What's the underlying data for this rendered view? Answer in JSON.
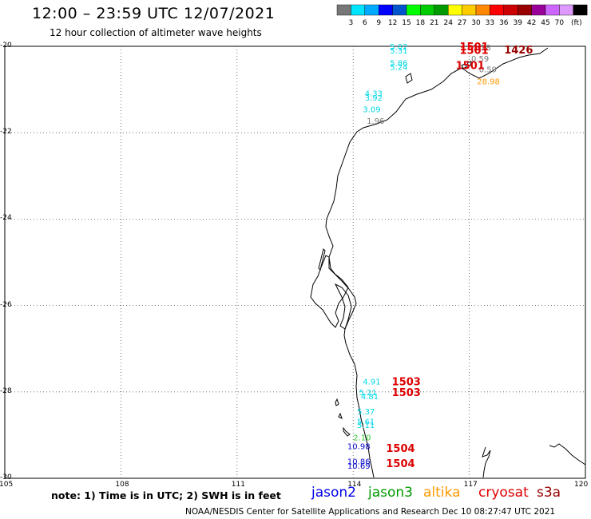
{
  "header": {
    "title": "12:00 – 23:59 UTC 12/07/2021",
    "subtitle": "12 hour collection of altimeter wave heights"
  },
  "scale": {
    "unit": "(ft)",
    "colors": [
      "#777777",
      "#00e5ff",
      "#00aaff",
      "#0000ff",
      "#0055cc",
      "#00ff00",
      "#00cc00",
      "#009900",
      "#ffff00",
      "#ffcc00",
      "#ff8800",
      "#ff0000",
      "#cc0000",
      "#990000",
      "#990099",
      "#cc66ff",
      "#dd99ff",
      "#000000"
    ],
    "labels": [
      "3",
      "6",
      "9",
      "12",
      "15",
      "18",
      "21",
      "24",
      "27",
      "30",
      "33",
      "36",
      "39",
      "42",
      "45",
      "70"
    ]
  },
  "axes": {
    "lon_labels": [
      "105",
      "108",
      "111",
      "114",
      "117",
      "120"
    ],
    "lat_labels": [
      "-20",
      "-22",
      "-24",
      "-26",
      "-28",
      "-30"
    ]
  },
  "chart_data": {
    "type": "map",
    "x_range": [
      105,
      120
    ],
    "y_range": [
      -30,
      -20
    ],
    "grid": true,
    "wave_labels": [
      {
        "text": "5.02",
        "lon": 114.95,
        "lat": -20.0,
        "color": "#00d8e8"
      },
      {
        "text": "5.31",
        "lon": 114.95,
        "lat": -20.09,
        "color": "#00d8e8"
      },
      {
        "text": "5.86",
        "lon": 114.95,
        "lat": -20.38,
        "color": "#00d8e8"
      },
      {
        "text": "5.24",
        "lon": 114.95,
        "lat": -20.47,
        "color": "#00d8e8"
      },
      {
        "text": "2.28",
        "lon": 117.1,
        "lat": -20.02,
        "color": "#777777"
      },
      {
        "text": "0.59",
        "lon": 117.05,
        "lat": -20.28,
        "color": "#777777"
      },
      {
        "text": "0.59",
        "lon": 117.25,
        "lat": -20.53,
        "color": "#777777"
      },
      {
        "text": "28.98",
        "lon": 117.2,
        "lat": -20.8,
        "color": "#ff9900"
      },
      {
        "text": "4.33",
        "lon": 114.3,
        "lat": -21.08,
        "color": "#00d8e8"
      },
      {
        "text": "3.92",
        "lon": 114.3,
        "lat": -21.18,
        "color": "#00d8e8"
      },
      {
        "text": "3.09",
        "lon": 114.25,
        "lat": -21.45,
        "color": "#00d8e8"
      },
      {
        "text": "1.96",
        "lon": 114.35,
        "lat": -21.72,
        "color": "#777777"
      },
      {
        "text": "4.91",
        "lon": 114.25,
        "lat": -27.75,
        "color": "#00d8e8"
      },
      {
        "text": "5.21",
        "lon": 114.15,
        "lat": -28.0,
        "color": "#00d8e8"
      },
      {
        "text": "4.81",
        "lon": 114.2,
        "lat": -28.1,
        "color": "#00d8e8"
      },
      {
        "text": "5.37",
        "lon": 114.1,
        "lat": -28.45,
        "color": "#00d8e8"
      },
      {
        "text": "5.61",
        "lon": 114.1,
        "lat": -28.68,
        "color": "#00d8e8"
      },
      {
        "text": "5.11",
        "lon": 114.1,
        "lat": -28.76,
        "color": "#00d8e8"
      },
      {
        "text": "2.10",
        "lon": 114.0,
        "lat": -29.05,
        "color": "#33cc33"
      },
      {
        "text": "10.98",
        "lon": 113.85,
        "lat": -29.25,
        "color": "#0000cc"
      },
      {
        "text": "10.86",
        "lon": 113.85,
        "lat": -29.6,
        "color": "#0000cc"
      },
      {
        "text": "10.69",
        "lon": 113.85,
        "lat": -29.7,
        "color": "#0000cc"
      }
    ],
    "track_labels": [
      {
        "text": "1501",
        "lon": 116.75,
        "lat": -20.0,
        "color": "#dd0000"
      },
      {
        "text": "1501",
        "lon": 116.75,
        "lat": -20.08,
        "color": "#dd0000"
      },
      {
        "text": "1426",
        "lon": 117.9,
        "lat": -20.07,
        "color": "#990000"
      },
      {
        "text": "1501",
        "lon": 116.65,
        "lat": -20.43,
        "color": "#dd0000"
      },
      {
        "text": "1503",
        "lon": 115.0,
        "lat": -27.75,
        "color": "#dd0000"
      },
      {
        "text": "1503",
        "lon": 115.0,
        "lat": -28.0,
        "color": "#dd0000"
      },
      {
        "text": "1504",
        "lon": 114.85,
        "lat": -29.3,
        "color": "#dd0000"
      },
      {
        "text": "1504",
        "lon": 114.85,
        "lat": -29.65,
        "color": "#dd0000"
      }
    ]
  },
  "footer": {
    "note": "note:  1) Time is in UTC;  2) SWH is in feet",
    "credit": "NOAA/NESDIS Center for Satellite Applications and Research     Dec 10 08:27:47 UTC 2021",
    "satellites": [
      {
        "name": "jason2",
        "color": "#0000ee"
      },
      {
        "name": "jason3",
        "color": "#009900"
      },
      {
        "name": "altika",
        "color": "#ff9900"
      },
      {
        "name": "cryosat",
        "color": "#dd0000"
      },
      {
        "name": "s3a",
        "color": "#990000"
      }
    ]
  }
}
